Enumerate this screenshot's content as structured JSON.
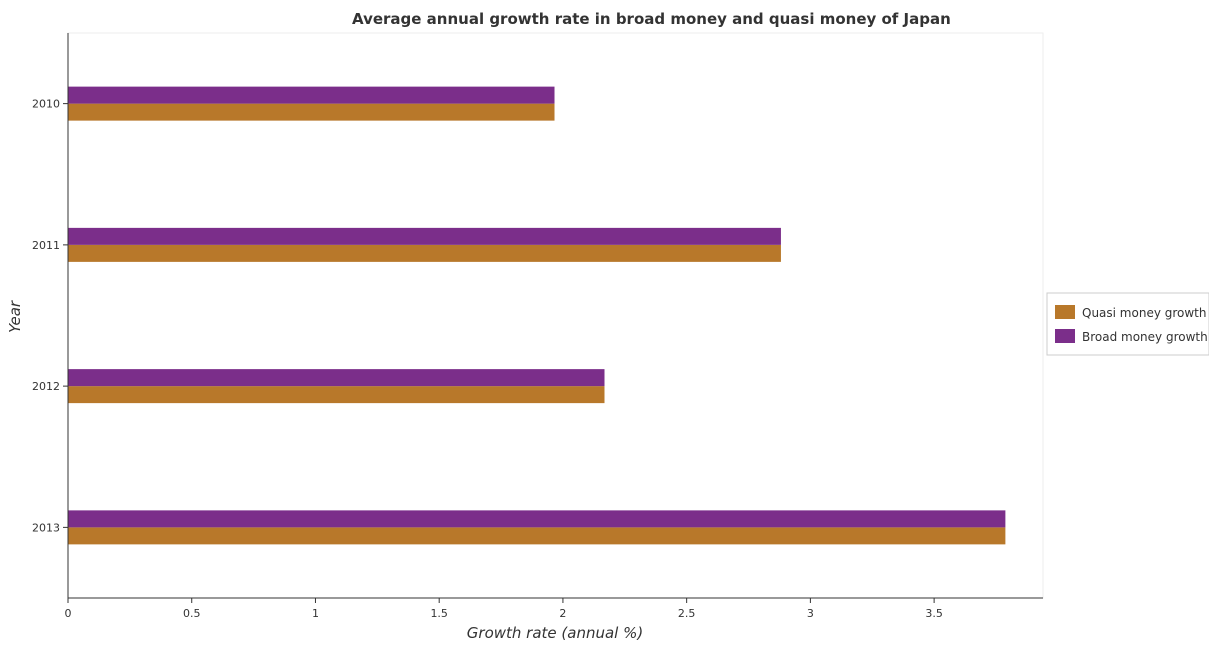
{
  "chart_data": {
    "type": "bar",
    "orientation": "horizontal",
    "title": "Average annual growth rate in broad money and quasi money of Japan",
    "xlabel": "Growth rate (annual %)",
    "ylabel": "Year",
    "categories": [
      "2010",
      "2011",
      "2012",
      "2013"
    ],
    "series": [
      {
        "name": "Quasi money growth",
        "color": "#b8782a",
        "values": [
          1.966,
          2.881,
          2.168,
          3.788
        ]
      },
      {
        "name": "Broad money growth",
        "color": "#7b2e8a",
        "values": [
          1.966,
          2.881,
          2.168,
          3.788
        ]
      }
    ],
    "xlim": [
      0,
      3.94
    ],
    "xticks": [
      0,
      0.5,
      1,
      1.5,
      2,
      2.5,
      3,
      3.5
    ],
    "xtick_labels": [
      "0",
      "0.5",
      "1",
      "1.5",
      "2",
      "2.5",
      "3",
      "3.5"
    ],
    "grid": false,
    "legend_position": "right"
  }
}
